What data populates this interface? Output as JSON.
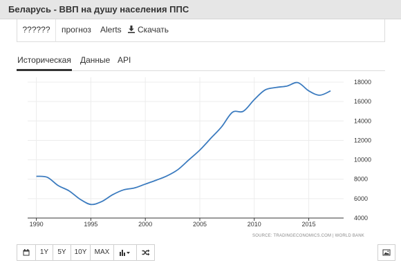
{
  "header": {
    "title": "Беларусь - ВВП на душу населения ППС"
  },
  "top_tabs": [
    {
      "label": "??????"
    },
    {
      "label": "прогноз"
    },
    {
      "label": "Alerts"
    },
    {
      "label": "Скачать"
    }
  ],
  "sub_tabs": [
    {
      "label": "Историческая"
    },
    {
      "label": "Данные"
    },
    {
      "label": "API"
    }
  ],
  "toolbar": {
    "buttons": [
      "1Y",
      "5Y",
      "10Y",
      "MAX"
    ],
    "icons": [
      "calendar-icon",
      "bar-chart-icon",
      "shuffle-icon",
      "image-icon"
    ]
  },
  "chart_data": {
    "type": "line",
    "title": "",
    "xlabel": "",
    "ylabel": "",
    "source": "SOURCE: TRADINGECONOMICS.COM | WORLD BANK",
    "xlim": [
      1989.2,
      2018.2
    ],
    "ylim": [
      4000,
      18500
    ],
    "x_ticks": [
      1990,
      1995,
      2000,
      2005,
      2010,
      2015
    ],
    "y_ticks": [
      4000,
      6000,
      8000,
      10000,
      12000,
      14000,
      16000,
      18000
    ],
    "grid": true,
    "legend": "none",
    "color": "#3b7bbf",
    "series": [
      {
        "x": [
          1990,
          1991,
          1992,
          1993,
          1994,
          1995,
          1996,
          1997,
          1998,
          1999,
          2000,
          2001,
          2002,
          2003,
          2004,
          2005,
          2006,
          2007,
          2008,
          2009,
          2010,
          2011,
          2012,
          2013,
          2014,
          2015,
          2016,
          2017
        ],
        "values": [
          8300,
          8200,
          7350,
          6800,
          5950,
          5400,
          5700,
          6400,
          6900,
          7100,
          7500,
          7900,
          8350,
          9000,
          10000,
          11000,
          12200,
          13400,
          14900,
          15000,
          16200,
          17200,
          17450,
          17600,
          17950,
          17100,
          16650,
          17100
        ]
      }
    ]
  }
}
